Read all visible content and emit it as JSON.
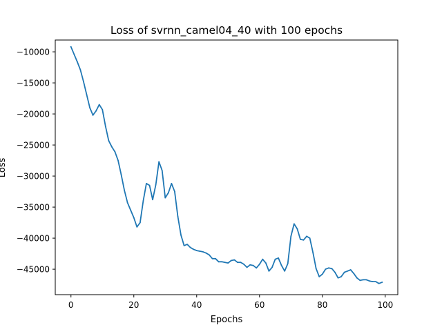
{
  "chart_data": {
    "type": "line",
    "title": "Loss of svrnn_camel04_40 with 100 epochs",
    "xlabel": "Epochs",
    "ylabel": "Loss",
    "xlim": [
      -5,
      104
    ],
    "ylim": [
      -49100,
      -8100
    ],
    "grid": false,
    "xticks": [
      0,
      20,
      40,
      60,
      80,
      100
    ],
    "xtick_labels": [
      "0",
      "20",
      "40",
      "60",
      "80",
      "100"
    ],
    "yticks": [
      -10000,
      -15000,
      -20000,
      -25000,
      -30000,
      -35000,
      -40000,
      -45000
    ],
    "ytick_labels": [
      "−10000",
      "−15000",
      "−20000",
      "−25000",
      "−30000",
      "−35000",
      "−40000",
      "−45000"
    ],
    "series": [
      {
        "color": "#1f77b4",
        "x": [
          0,
          1,
          2,
          3,
          4,
          5,
          6,
          7,
          8,
          9,
          10,
          11,
          12,
          13,
          14,
          15,
          16,
          17,
          18,
          19,
          20,
          21,
          22,
          23,
          24,
          25,
          26,
          27,
          28,
          29,
          30,
          31,
          32,
          33,
          34,
          35,
          36,
          37,
          38,
          39,
          40,
          41,
          42,
          43,
          44,
          45,
          46,
          47,
          48,
          49,
          50,
          51,
          52,
          53,
          54,
          55,
          56,
          57,
          58,
          59,
          60,
          61,
          62,
          63,
          64,
          65,
          66,
          67,
          68,
          69,
          70,
          71,
          72,
          73,
          74,
          75,
          76,
          77,
          78,
          79,
          80,
          81,
          82,
          83,
          84,
          85,
          86,
          87,
          88,
          89,
          90,
          91,
          92,
          93,
          94,
          95,
          96,
          97,
          98,
          99
        ],
        "y": [
          -9200,
          -10400,
          -11600,
          -12900,
          -14800,
          -16900,
          -19000,
          -20200,
          -19500,
          -18500,
          -19300,
          -22000,
          -24300,
          -25300,
          -26100,
          -27500,
          -29800,
          -32300,
          -34300,
          -35500,
          -36700,
          -38200,
          -37500,
          -34000,
          -31200,
          -31500,
          -33800,
          -31400,
          -27700,
          -29100,
          -33500,
          -32700,
          -31200,
          -32500,
          -36500,
          -39500,
          -41200,
          -41000,
          -41500,
          -41800,
          -42000,
          -42100,
          -42200,
          -42400,
          -42700,
          -43300,
          -43300,
          -43800,
          -43800,
          -43900,
          -44000,
          -43600,
          -43500,
          -43900,
          -43900,
          -44200,
          -44700,
          -44300,
          -44400,
          -44800,
          -44200,
          -43400,
          -44000,
          -45300,
          -44700,
          -43400,
          -43200,
          -44400,
          -45300,
          -44100,
          -39700,
          -37700,
          -38500,
          -40200,
          -40300,
          -39700,
          -40000,
          -42300,
          -44900,
          -46200,
          -45800,
          -45000,
          -44800,
          -44900,
          -45500,
          -46400,
          -46200,
          -45500,
          -45300,
          -45100,
          -45700,
          -46400,
          -46800,
          -46700,
          -46700,
          -46900,
          -47000,
          -47000,
          -47300,
          -47100
        ]
      }
    ]
  }
}
